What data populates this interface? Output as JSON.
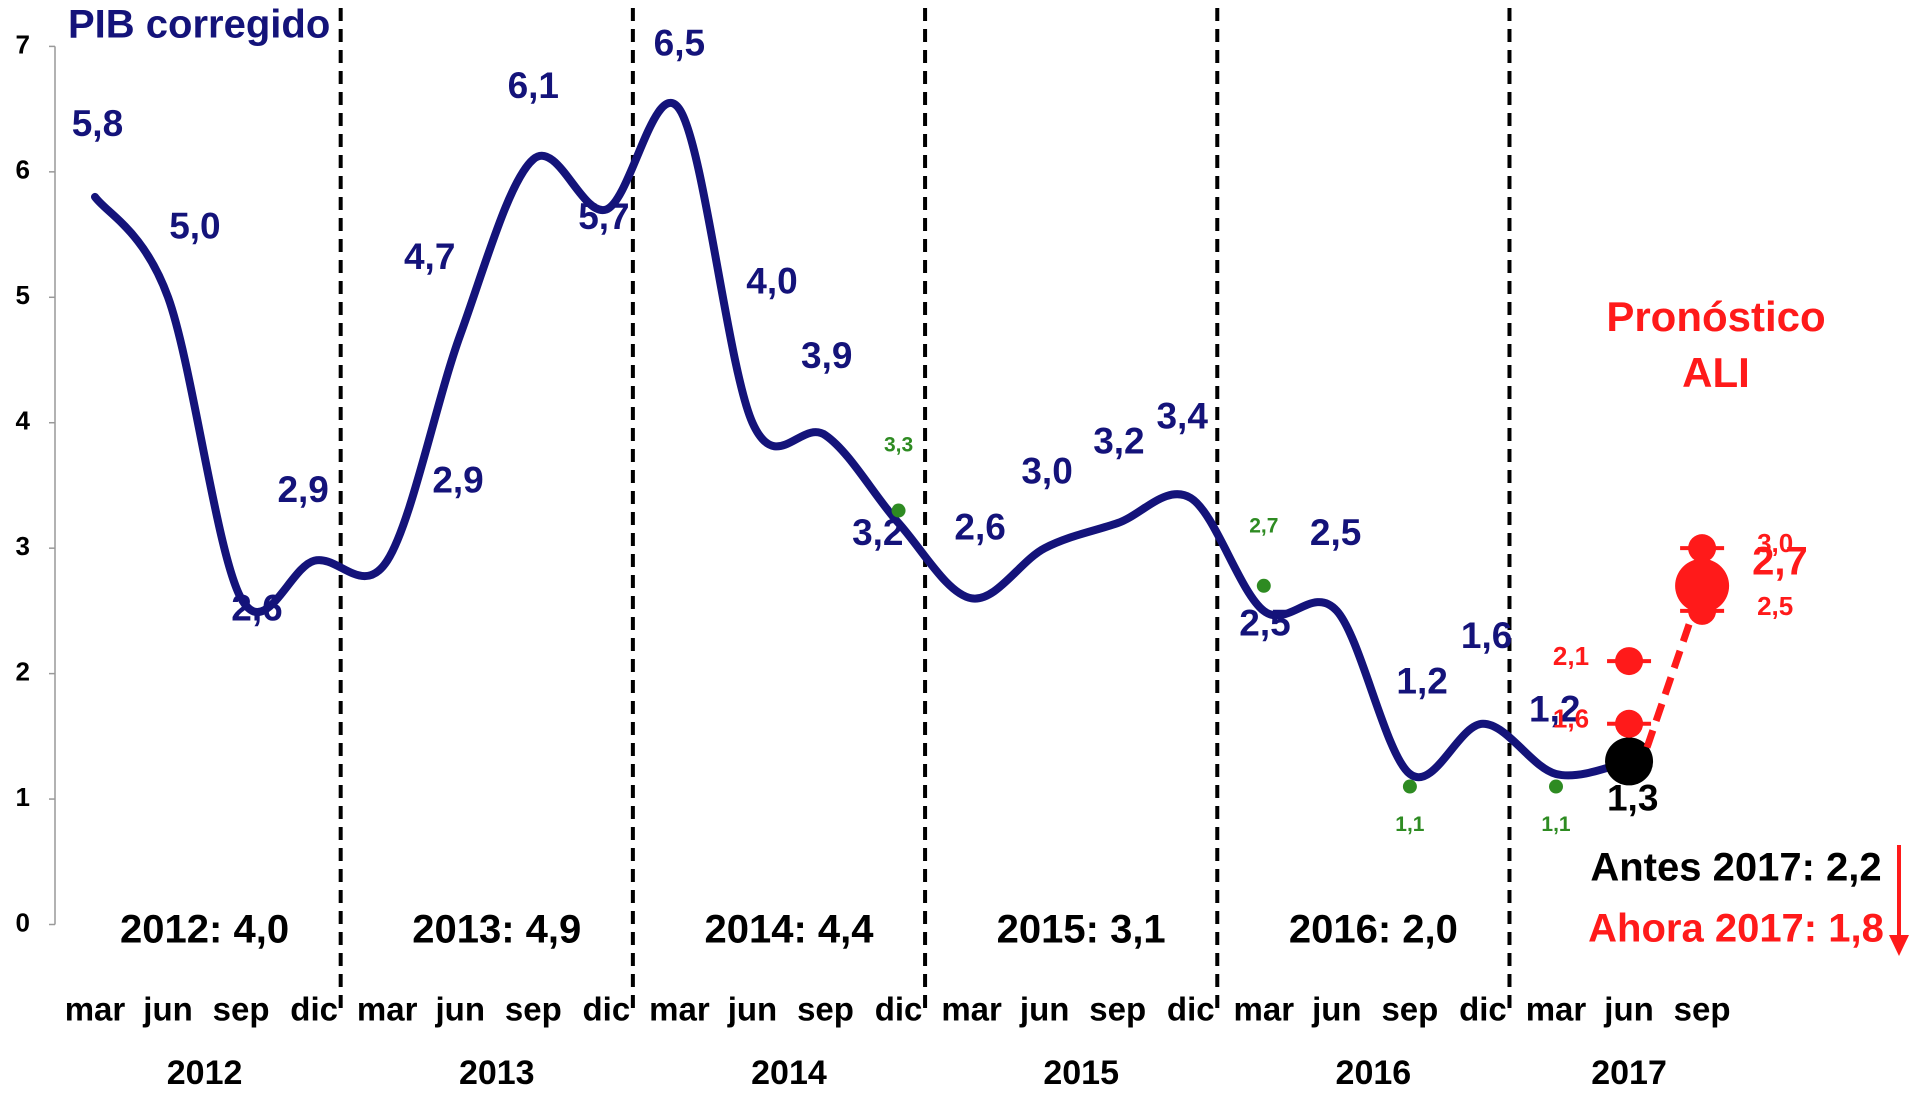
{
  "chart_data": {
    "type": "line",
    "title": "PIB corregido",
    "categories": [
      "mar",
      "jun",
      "sep",
      "dic",
      "mar",
      "jun",
      "sep",
      "dic",
      "mar",
      "jun",
      "sep",
      "dic",
      "mar",
      "jun",
      "sep",
      "dic",
      "mar",
      "jun",
      "sep",
      "dic",
      "mar",
      "jun",
      "sep"
    ],
    "x_groups": [
      "2012",
      "2013",
      "2014",
      "2015",
      "2016",
      "2017"
    ],
    "ylim": [
      0,
      7
    ],
    "yticks": [
      0,
      1,
      2,
      3,
      4,
      5,
      6,
      7
    ],
    "series": [
      {
        "color": "#14137a",
        "highlight_color": "#000000",
        "values": [
          5.8,
          5.0,
          2.6,
          2.9,
          2.9,
          4.7,
          6.1,
          5.7,
          6.5,
          4.0,
          3.9,
          3.2,
          2.6,
          3.0,
          3.2,
          3.4,
          2.5,
          2.5,
          1.2,
          1.6,
          1.2,
          1.3,
          null
        ],
        "value_labels": [
          "5,8",
          "5,0",
          "2,6",
          "2,9",
          "2,9",
          "4,7",
          "6,1",
          "5,7",
          "6,5",
          "4,0",
          "3,9",
          "3,2",
          "2,6",
          "3,0",
          "3,2",
          "3,4",
          "2,5",
          "2,5",
          "1,2",
          "1,6",
          "1,2",
          "1,3",
          null
        ]
      },
      {
        "color": "#2e8b22",
        "values": [
          null,
          null,
          null,
          null,
          null,
          null,
          null,
          null,
          null,
          null,
          null,
          3.3,
          null,
          null,
          null,
          null,
          2.7,
          null,
          1.1,
          null,
          1.1,
          null,
          null
        ],
        "value_labels": [
          null,
          null,
          null,
          null,
          null,
          null,
          null,
          null,
          null,
          null,
          null,
          "3,3",
          null,
          null,
          null,
          null,
          "2,7",
          null,
          "1,1",
          null,
          "1,1",
          null,
          null
        ]
      },
      {
        "color": "#ff1a1a",
        "values": [
          null,
          null,
          null,
          null,
          null,
          null,
          null,
          null,
          null,
          null,
          null,
          null,
          null,
          null,
          null,
          null,
          null,
          null,
          null,
          null,
          null,
          2.1,
          3.0
        ],
        "value_labels": [
          null,
          null,
          null,
          null,
          null,
          null,
          null,
          null,
          null,
          null,
          null,
          null,
          null,
          null,
          null,
          null,
          null,
          null,
          null,
          null,
          null,
          "2,1",
          "3,0"
        ]
      },
      {
        "color": "#ff1a1a",
        "values": [
          null,
          null,
          null,
          null,
          null,
          null,
          null,
          null,
          null,
          null,
          null,
          null,
          null,
          null,
          null,
          null,
          null,
          null,
          null,
          null,
          null,
          1.6,
          2.5
        ],
        "value_labels": [
          null,
          null,
          null,
          null,
          null,
          null,
          null,
          null,
          null,
          null,
          null,
          null,
          null,
          null,
          null,
          null,
          null,
          null,
          null,
          null,
          null,
          "1,6",
          "2,5"
        ]
      },
      {
        "color": "#ff1a1a",
        "marker_size": "large",
        "connect": true,
        "values": [
          null,
          null,
          null,
          null,
          null,
          null,
          null,
          null,
          null,
          null,
          null,
          null,
          null,
          null,
          null,
          null,
          null,
          null,
          null,
          null,
          null,
          null,
          2.7
        ],
        "value_labels": [
          null,
          null,
          null,
          null,
          null,
          null,
          null,
          null,
          null,
          null,
          null,
          null,
          null,
          null,
          null,
          null,
          null,
          null,
          null,
          null,
          null,
          null,
          "2,7"
        ]
      }
    ],
    "year_summaries": [
      "2012: 4,0",
      "2013: 4,9",
      "2014: 4,4",
      "2015: 3,1",
      "2016: 2,0"
    ],
    "forecast_label": [
      "Pronóstico",
      "ALI"
    ],
    "forecast_color": "#ff1a1a",
    "notes": [
      {
        "text": "Antes 2017: 2,2",
        "color": "#000000"
      },
      {
        "text": "Ahora 2017: 1,8",
        "color": "#ff1a1a"
      }
    ]
  }
}
